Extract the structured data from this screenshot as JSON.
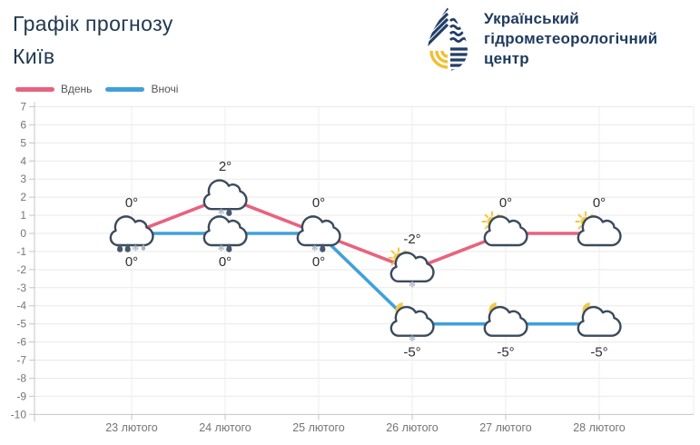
{
  "header": {
    "title_line1": "Графік прогнозу",
    "title_line2": "Київ",
    "logo_text": {
      "line1": "Український",
      "line2": "гідрометеорологічний",
      "line3": "центр"
    }
  },
  "colors": {
    "day": "#e8627f",
    "night": "#41a0db",
    "title": "#20394f",
    "logo_navy": "#223e66",
    "logo_yellow": "#f1bf33",
    "tick_text": "#757575",
    "value_text": "#2f2f2f",
    "grid": "#e9e9e9",
    "axis": "#c6c6c6",
    "cloud_outline": "#3b4a5c",
    "snow": "#95a3b5",
    "rain": "#47586e",
    "rain_light": "#a9b2bf",
    "sun": "#f3c83a",
    "moon": "#f2c94b"
  },
  "chart_data": {
    "type": "line",
    "title": "Графік прогнозу Київ",
    "xlabel": "",
    "ylabel": "",
    "categories": [
      "23 лютого",
      "24 лютого",
      "25 лютого",
      "26 лютого",
      "27 лютого",
      "28 лютого"
    ],
    "ylim": [
      -10,
      7
    ],
    "ytick_step": 1,
    "grid": true,
    "legend_position": "top-left",
    "series": [
      {
        "name": "Вдень",
        "color": "#e8627f",
        "values": [
          0,
          2,
          0,
          -2,
          0,
          0
        ],
        "labels": [
          "0°",
          "2°",
          "0°",
          "-2°",
          "0°",
          "0°"
        ],
        "label_position": "above",
        "icons": [
          "cloud",
          "cloud",
          "cloud",
          "sun-cloud",
          "sun-cloud",
          "sun-cloud"
        ],
        "precip": [
          [
            "rain",
            "rain",
            "snow",
            "rain-light"
          ],
          [
            "snow",
            "rain"
          ],
          [
            "snow",
            "rain"
          ],
          [
            "snow"
          ],
          [],
          []
        ]
      },
      {
        "name": "Вночі",
        "color": "#41a0db",
        "values": [
          0,
          0,
          0,
          -5,
          -5,
          -5
        ],
        "labels": [
          "0°",
          "0°",
          "0°",
          "-5°",
          "-5°",
          "-5°"
        ],
        "label_position": "below",
        "icons": [
          null,
          "cloud",
          null,
          "moon-cloud",
          "moon-cloud",
          "moon-cloud"
        ],
        "precip": [
          null,
          [
            "snow",
            "rain"
          ],
          null,
          [
            "snow"
          ],
          [],
          []
        ]
      }
    ]
  }
}
